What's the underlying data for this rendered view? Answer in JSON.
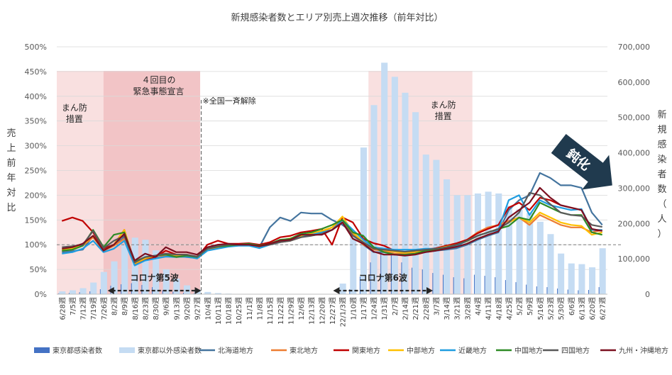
{
  "chart_data": {
    "type": "bar+line",
    "title": "新規感染者数とエリア別売上週次推移（前年対比）",
    "ylabel_left": "売上前年対比",
    "ylabel_right": "新規感染者数（人）",
    "y_left_ticks": [
      "0%",
      "50%",
      "100%",
      "150%",
      "200%",
      "250%",
      "300%",
      "350%",
      "400%",
      "450%",
      "500%"
    ],
    "y_left_range": [
      0,
      500
    ],
    "y_right_ticks": [
      "0",
      "100,000",
      "200,000",
      "300,000",
      "400,000",
      "500,000",
      "600,000",
      "700,000"
    ],
    "y_right_range": [
      0,
      700000
    ],
    "reference_line_pct": 100,
    "categories": [
      "6/28週",
      "7/5週",
      "7/12週",
      "7/19週",
      "7/26週",
      "8/2週",
      "8/9週",
      "8/16週",
      "8/23週",
      "8/30週",
      "9/6週",
      "9/13週",
      "9/20週",
      "9/27週",
      "10/4週",
      "10/11週",
      "10/18週",
      "10/25週",
      "11/1週",
      "11/8週",
      "11/15週",
      "11/22週",
      "11/29週",
      "12/6週",
      "12/13週",
      "12/20週",
      "12/27週",
      "22/1/3週",
      "1/10週",
      "1/17週",
      "1/24週",
      "1/31週",
      "2/7週",
      "2/14週",
      "2/21週",
      "2/28週",
      "3/7週",
      "3/14週",
      "3/21週",
      "3/28週",
      "4/4週",
      "4/11週",
      "4/18週",
      "4/25週",
      "5/2週",
      "5/9週",
      "5/16週",
      "5/23週",
      "5/30週",
      "6/6週",
      "6/13週",
      "6/20週",
      "6/27週"
    ],
    "shown_tick_labels": [
      "6/28週",
      "7/5週",
      "7/12週",
      "7/19週",
      "7/26週",
      "8/2週",
      "8/9週",
      "8/16週",
      "8/23週",
      "8/30週",
      "9/6週",
      "9/13週",
      "9/20週",
      "9/27週",
      "10/4週",
      "10/11週",
      "10/18週",
      "10/25週",
      "11/1週",
      "11/8週",
      "11/15週",
      "11/22週",
      "11/29週",
      "12/6週",
      "12/13週",
      "12/20週",
      "12/27週",
      "22/1/3週",
      "1/10週",
      "1/17週",
      "1/24週",
      "1/31週",
      "2/7週",
      "2/14週",
      "2/21週",
      "2/28週",
      "3/7週",
      "3/14週",
      "3/21週",
      "3/28週",
      "4/4週",
      "4/11週",
      "4/18週",
      "4/25週",
      "5/2週",
      "5/9週",
      "5/16週",
      "5/23週",
      "5/30週",
      "6/6週",
      "6/13週",
      "6/20週",
      "6/27週"
    ],
    "bar_series": [
      {
        "name": "東京都感染者数",
        "color": "#4472c4",
        "values": [
          2500,
          3500,
          5500,
          8000,
          14000,
          24000,
          28000,
          31000,
          26000,
          20000,
          11000,
          7000,
          4000,
          2000,
          1300,
          800,
          500,
          300,
          200,
          200,
          150,
          150,
          150,
          150,
          150,
          200,
          400,
          3000,
          14000,
          50000,
          90000,
          120000,
          110000,
          90000,
          75000,
          70000,
          60000,
          55000,
          48000,
          45000,
          55000,
          52000,
          48000,
          40000,
          34000,
          27000,
          22000,
          20000,
          16000,
          13000,
          11000,
          12000,
          20000
        ]
      },
      {
        "name": "東京都以外感染者数",
        "color": "#c5dcf3",
        "values": [
          8000,
          11000,
          17000,
          33000,
          63000,
          93000,
          139000,
          160000,
          154000,
          124000,
          70000,
          44000,
          25000,
          13000,
          6300,
          3200,
          1500,
          700,
          500,
          400,
          350,
          350,
          400,
          500,
          500,
          700,
          1000,
          30000,
          170000,
          415000,
          535000,
          655000,
          615000,
          570000,
          515000,
          395000,
          380000,
          325000,
          280000,
          280000,
          285000,
          290000,
          285000,
          250000,
          240000,
          230000,
          205000,
          170000,
          115000,
          87000,
          85000,
          76000,
          130000
        ]
      }
    ],
    "line_series": [
      {
        "name": "北海道地方",
        "color": "#44749e",
        "values": [
          85,
          87,
          90,
          118,
          93,
          100,
          115,
          62,
          72,
          73,
          78,
          77,
          75,
          73,
          90,
          95,
          100,
          100,
          100,
          95,
          135,
          155,
          148,
          165,
          163,
          163,
          150,
          140,
          125,
          100,
          85,
          85,
          80,
          80,
          82,
          85,
          88,
          90,
          93,
          100,
          110,
          118,
          125,
          170,
          190,
          200,
          245,
          235,
          220,
          220,
          215,
          165,
          140
        ]
      },
      {
        "name": "東北地方",
        "color": "#ed7d31",
        "values": [
          88,
          90,
          98,
          115,
          88,
          98,
          112,
          62,
          75,
          72,
          78,
          76,
          78,
          72,
          90,
          95,
          98,
          100,
          100,
          95,
          100,
          105,
          108,
          115,
          120,
          125,
          135,
          150,
          120,
          100,
          90,
          88,
          82,
          82,
          85,
          88,
          90,
          95,
          100,
          110,
          125,
          135,
          140,
          148,
          155,
          140,
          160,
          150,
          140,
          135,
          135,
          125,
          130
        ]
      },
      {
        "name": "関東地方",
        "color": "#c00000",
        "values": [
          148,
          155,
          148,
          125,
          92,
          100,
          130,
          60,
          70,
          75,
          88,
          80,
          80,
          75,
          100,
          108,
          102,
          102,
          103,
          100,
          105,
          115,
          118,
          125,
          128,
          132,
          100,
          155,
          145,
          112,
          103,
          98,
          88,
          85,
          88,
          90,
          93,
          98,
          103,
          110,
          123,
          132,
          140,
          175,
          185,
          170,
          195,
          190,
          180,
          175,
          170,
          130,
          128
        ]
      },
      {
        "name": "中部地方",
        "color": "#ffc000",
        "values": [
          90,
          92,
          100,
          118,
          88,
          100,
          130,
          62,
          72,
          78,
          82,
          79,
          80,
          75,
          92,
          97,
          100,
          100,
          100,
          97,
          100,
          108,
          113,
          118,
          122,
          128,
          135,
          157,
          125,
          105,
          92,
          90,
          86,
          84,
          86,
          88,
          92,
          96,
          100,
          107,
          118,
          125,
          132,
          145,
          155,
          145,
          165,
          155,
          145,
          140,
          138,
          120,
          125
        ]
      },
      {
        "name": "近畿地方",
        "color": "#1f9de0",
        "values": [
          82,
          85,
          92,
          108,
          85,
          92,
          108,
          58,
          68,
          72,
          76,
          75,
          76,
          72,
          88,
          92,
          96,
          98,
          98,
          93,
          100,
          105,
          110,
          115,
          120,
          125,
          130,
          150,
          130,
          110,
          95,
          92,
          90,
          90,
          90,
          92,
          92,
          93,
          98,
          108,
          118,
          125,
          130,
          190,
          200,
          160,
          190,
          180,
          175,
          170,
          172,
          130,
          130
        ]
      },
      {
        "name": "中国地方",
        "color": "#2e8b25",
        "values": [
          88,
          90,
          98,
          130,
          95,
          120,
          125,
          66,
          75,
          78,
          80,
          75,
          78,
          75,
          92,
          96,
          98,
          100,
          102,
          98,
          102,
          110,
          112,
          122,
          125,
          132,
          140,
          150,
          125,
          118,
          95,
          85,
          80,
          80,
          82,
          88,
          90,
          95,
          100,
          108,
          118,
          125,
          132,
          138,
          155,
          150,
          185,
          175,
          165,
          160,
          160,
          125,
          120
        ]
      },
      {
        "name": "四国地方",
        "color": "#595959",
        "values": [
          95,
          97,
          100,
          128,
          93,
          108,
          118,
          64,
          75,
          78,
          82,
          80,
          80,
          76,
          92,
          97,
          100,
          100,
          100,
          97,
          100,
          105,
          108,
          115,
          118,
          122,
          130,
          145,
          118,
          105,
          92,
          90,
          88,
          86,
          88,
          90,
          92,
          95,
          100,
          108,
          118,
          125,
          132,
          145,
          165,
          205,
          200,
          182,
          165,
          160,
          158,
          140,
          136
        ]
      },
      {
        "name": "九州・沖縄地方",
        "color": "#7b1020",
        "values": [
          92,
          95,
          102,
          118,
          88,
          100,
          122,
          68,
          82,
          75,
          95,
          85,
          85,
          80,
          95,
          100,
          102,
          100,
          100,
          97,
          102,
          108,
          110,
          120,
          120,
          120,
          130,
          145,
          112,
          102,
          86,
          80,
          80,
          78,
          80,
          85,
          88,
          92,
          96,
          102,
          112,
          120,
          127,
          155,
          170,
          185,
          215,
          195,
          180,
          175,
          170,
          132,
          128
        ]
      }
    ],
    "annotations": {
      "shade1_label": "まん防\n措置",
      "shade2_label": "４回目の\n緊急事態宣言",
      "lift_label": "※全国一斉解除",
      "wave5_label": "コロナ第5波",
      "wave6_label": "コロナ第6波",
      "shade3_label": "まん防\n措置",
      "callout": "鈍化"
    },
    "colors": {
      "shade_light": "#f9e0e0",
      "shade_dark": "#f2c4c6",
      "callout": "#203a4e",
      "refline": "#7f7f7f"
    },
    "legend_position": "bottom"
  }
}
